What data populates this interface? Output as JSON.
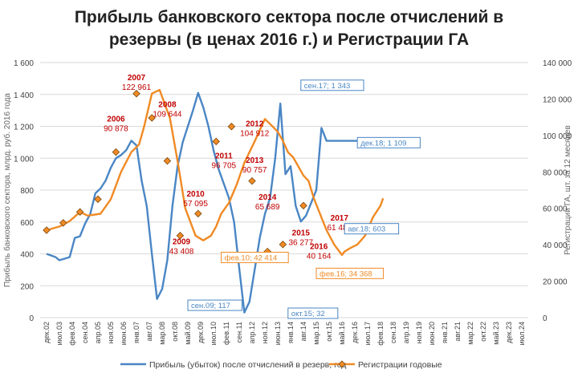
{
  "chart_data": {
    "type": "line",
    "title_line1": "Прибыль банковского сектора после отчислений в",
    "title_line2": "резервы (в ценах 2016 г.) и Регистрации ГА",
    "ylabel_left": "Прибыль банковского сектора, млрд. руб. 2016 года",
    "ylabel_right": "Регистрации ГА, шт. за 12 месяцев",
    "left_axis": {
      "min": 0,
      "max": 1600,
      "ticks": [
        0,
        200,
        400,
        600,
        800,
        1000,
        1200,
        1400,
        1600
      ],
      "tick_labels": [
        "0",
        "200",
        "400",
        "600",
        "800",
        "1 000",
        "1 200",
        "1 400",
        "1 600"
      ]
    },
    "right_axis": {
      "min": 0,
      "max": 140000,
      "ticks": [
        0,
        20000,
        40000,
        60000,
        80000,
        100000,
        120000,
        140000
      ],
      "tick_labels": [
        "0",
        "20 000",
        "40 000",
        "60 000",
        "80 000",
        "100 000",
        "120 000",
        "140 000"
      ]
    },
    "x_tick_labels": [
      "дек.02",
      "июл.03",
      "фев.04",
      "сен.04",
      "апр.05",
      "ноя.05",
      "июн.06",
      "янв.07",
      "авг.07",
      "мар.08",
      "окт.08",
      "май.09",
      "дек.09",
      "июл.10",
      "фев.11",
      "сен.11",
      "апр.12",
      "ноя.12",
      "июн.13",
      "янв.14",
      "авг.14",
      "мар.15",
      "окт.15",
      "май.16",
      "дек.16",
      "июл.17",
      "фев.18",
      "сен.18",
      "апр.19",
      "ноя.19",
      "июн.20",
      "янв.21",
      "авг.21",
      "мар.22",
      "окт.22",
      "май.23",
      "дек.23",
      "июл.24"
    ],
    "series": [
      {
        "name": "Прибыль (убыток) после отчислений в резерв,  год",
        "color": "#4a86c5",
        "axis": "left",
        "x": [
          0,
          0.7,
          1,
          1.4,
          1.8,
          2.2,
          2.6,
          3,
          3.4,
          3.8,
          4.2,
          4.6,
          5,
          5.4,
          5.8,
          6.2,
          6.6,
          7,
          7.4,
          7.8,
          8.2,
          8.6,
          9,
          9.4,
          9.8,
          10.2,
          10.6,
          11,
          11.4,
          11.8,
          12.2,
          12.6,
          13,
          13.4,
          13.8,
          14.2,
          14.6,
          15,
          15.4,
          15.8,
          16.2,
          16.6,
          17,
          17.4,
          17.8,
          18.2,
          18.6,
          19,
          19.4,
          19.8,
          20.2,
          20.6,
          21,
          21.4,
          21.8,
          22.2,
          22.6,
          23,
          23.4,
          23.8,
          24.2,
          24.6,
          25,
          25.4,
          25.8,
          26.2,
          26.6,
          27,
          27.4,
          27.8,
          28.2
        ],
        "y": [
          400,
          380,
          360,
          370,
          380,
          500,
          510,
          590,
          650,
          780,
          810,
          860,
          940,
          1000,
          1020,
          1050,
          1110,
          1080,
          860,
          700,
          400,
          117,
          180,
          360,
          700,
          950,
          1100,
          1200,
          1300,
          1410,
          1320,
          1200,
          1050,
          930,
          840,
          750,
          600,
          310,
          32,
          100,
          300,
          500,
          650,
          750,
          1000,
          1343,
          900,
          950,
          700,
          603,
          640,
          720,
          800,
          1190,
          1109,
          1109,
          1109,
          1109,
          1109,
          1109,
          1109,
          1109,
          1109,
          1109,
          1109,
          1109,
          1109,
          1109,
          1109,
          1109,
          1109
        ]
      },
      {
        "name": "Регистрации годовые",
        "color": "#f08a24",
        "axis": "right",
        "x": [
          0,
          1,
          1.8,
          2.6,
          3.2,
          4.2,
          5,
          5.8,
          6.6,
          7.2,
          7.6,
          8.2,
          8.8,
          9.6,
          10.2,
          10.8,
          11.6,
          12.2,
          12.8,
          13.2,
          13.6,
          14.2,
          14.8,
          15.4,
          16.2,
          17,
          17.6,
          18,
          18.4,
          18.8,
          19.2,
          20,
          20.4,
          20.8,
          21.4,
          21.8,
          22.4,
          23.0,
          23.2,
          23.6,
          24.2,
          24.8,
          25.4,
          26.0,
          26.2
        ],
        "y": [
          48000,
          50000,
          53000,
          58000,
          56000,
          57000,
          65000,
          80000,
          90878,
          95000,
          105000,
          122961,
          125000,
          109644,
          86000,
          60000,
          45000,
          42414,
          45000,
          50000,
          57095,
          63000,
          73000,
          85000,
          96705,
          109000,
          104912,
          102000,
          97000,
          90757,
          88000,
          78000,
          75000,
          65689,
          55000,
          48000,
          40000,
          34368,
          36277,
          38000,
          40164,
          45000,
          55000,
          61489,
          65500
        ]
      }
    ],
    "diamond_markers": [
      {
        "x": 0,
        "y": 48000
      },
      {
        "x": 1.3,
        "y": 52000
      },
      {
        "x": 2.6,
        "y": 58000
      },
      {
        "x": 4.0,
        "y": 65000
      },
      {
        "x": 5.4,
        "y": 90878
      },
      {
        "x": 7.0,
        "y": 122961
      },
      {
        "x": 8.2,
        "y": 109644
      },
      {
        "x": 9.4,
        "y": 86000
      },
      {
        "x": 10.4,
        "y": 45000
      },
      {
        "x": 11.8,
        "y": 57095
      },
      {
        "x": 13.2,
        "y": 96705
      },
      {
        "x": 14.4,
        "y": 104912
      },
      {
        "x": 16.0,
        "y": 75000
      },
      {
        "x": 17.2,
        "y": 36277
      },
      {
        "x": 18.4,
        "y": 40164
      },
      {
        "x": 20.0,
        "y": 61489
      }
    ],
    "annotations": [
      {
        "text": "2007",
        "value": "122 961",
        "x": 7.0,
        "y": 1490
      },
      {
        "text": "2006",
        "value": "90 878",
        "x": 5.4,
        "y": 1230
      },
      {
        "text": "2008",
        "value": "109 644",
        "x": 9.4,
        "y": 1320
      },
      {
        "text": "2010",
        "value": "57 095",
        "x": 11.6,
        "y": 760
      },
      {
        "text": "2009",
        "value": "43 408",
        "x": 10.5,
        "y": 460
      },
      {
        "text": "2011",
        "value": "96 705",
        "x": 13.8,
        "y": 1000
      },
      {
        "text": "2012",
        "value": "104 912",
        "x": 16.2,
        "y": 1200
      },
      {
        "text": "2013",
        "value": "90 757",
        "x": 16.2,
        "y": 970
      },
      {
        "text": "2014",
        "value": "65 689",
        "x": 17.2,
        "y": 740
      },
      {
        "text": "2015",
        "value": "36 277",
        "x": 19.8,
        "y": 515
      },
      {
        "text": "2016",
        "value": "40 164",
        "x": 21.2,
        "y": 430
      },
      {
        "text": "2017",
        "value": "61 489",
        "x": 22.8,
        "y": 610
      }
    ],
    "callouts": [
      {
        "text": "сен.17; 1 343",
        "x": 19.8,
        "y": 1440,
        "color": "#4a86c5"
      },
      {
        "text": "дек.18; 1 109",
        "x": 24.2,
        "y": 1080,
        "color": "#4a86c5"
      },
      {
        "text": "авг.18; 603",
        "x": 23.2,
        "y": 540,
        "color": "#4a86c5"
      },
      {
        "text": "сен.09; 117",
        "x": 11.0,
        "y": 60,
        "color": "#4a86c5"
      },
      {
        "text": "окт.15; 32",
        "x": 18.8,
        "y": 10,
        "color": "#4a86c5"
      },
      {
        "text": "фев.10; 42 414",
        "x": 13.6,
        "y": 360,
        "color": "#f08a24"
      },
      {
        "text": "фев.16; 34 368",
        "x": 21.0,
        "y": 260,
        "color": "#f08a24"
      }
    ],
    "legend": [
      "Прибыль (убыток) после отчислений в резерв,  год",
      "Регистрации годовые"
    ]
  }
}
